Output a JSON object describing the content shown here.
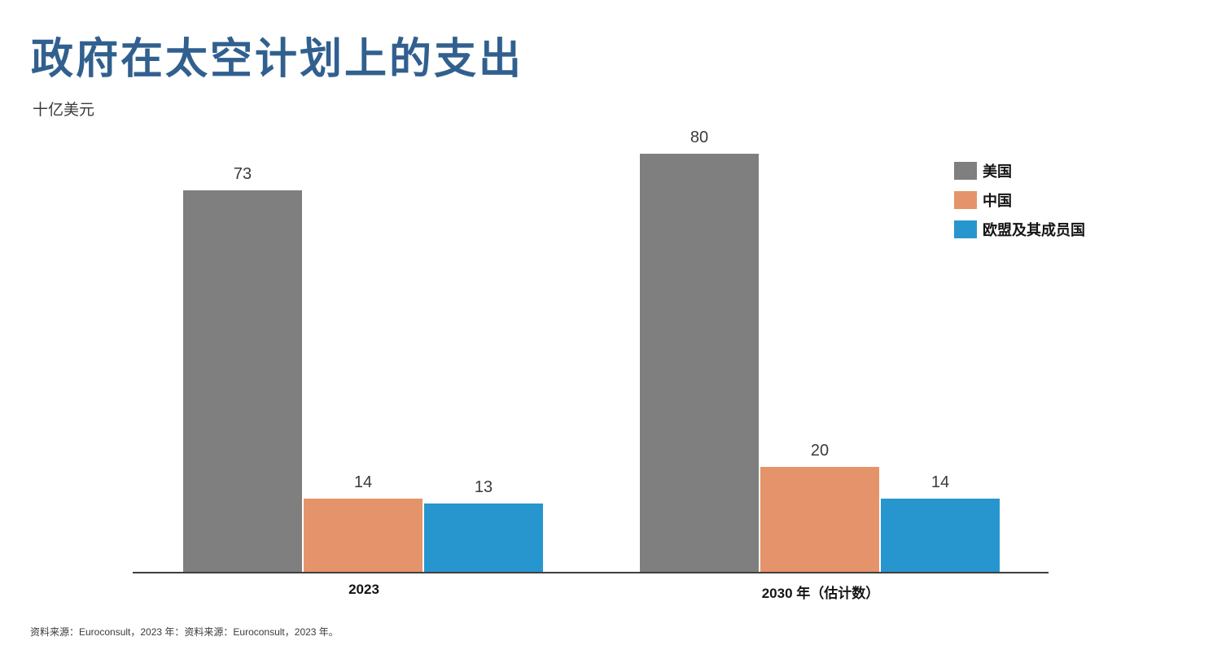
{
  "page": {
    "source_note": "资料来源：Euroconsult，2023 年：资料来源：Euroconsult，2023 年。"
  },
  "colors": {
    "title": "#31608F",
    "axis": "#3f3f3f",
    "value_label": "#3b3b3b"
  },
  "legend": {
    "items": [
      {
        "key": "us",
        "label": "美国",
        "color": "#7F7F7F"
      },
      {
        "key": "china",
        "label": "中国",
        "color": "#E5936A"
      },
      {
        "key": "eu",
        "label": "欧盟及其成员国",
        "color": "#2796CE"
      }
    ]
  },
  "chart_data": {
    "type": "bar",
    "title": "政府在太空计划上的支出",
    "subtitle": "十亿美元",
    "ylabel": "十亿美元",
    "xlabel": "",
    "categories": [
      "2023",
      "2030 年（估计数）"
    ],
    "series": [
      {
        "key": "us",
        "name": "美国",
        "color": "#7F7F7F",
        "values": [
          73,
          80
        ]
      },
      {
        "key": "china",
        "name": "中国",
        "color": "#E5936A",
        "values": [
          14,
          20
        ]
      },
      {
        "key": "eu",
        "name": "欧盟及其成员国",
        "color": "#2796CE",
        "values": [
          13,
          14
        ]
      }
    ],
    "ylim": [
      0,
      86
    ],
    "grid": false,
    "value_labels": true,
    "legend_position": "right",
    "source": "资料来源：Euroconsult，2023 年：资料来源：Euroconsult，2023 年。"
  }
}
